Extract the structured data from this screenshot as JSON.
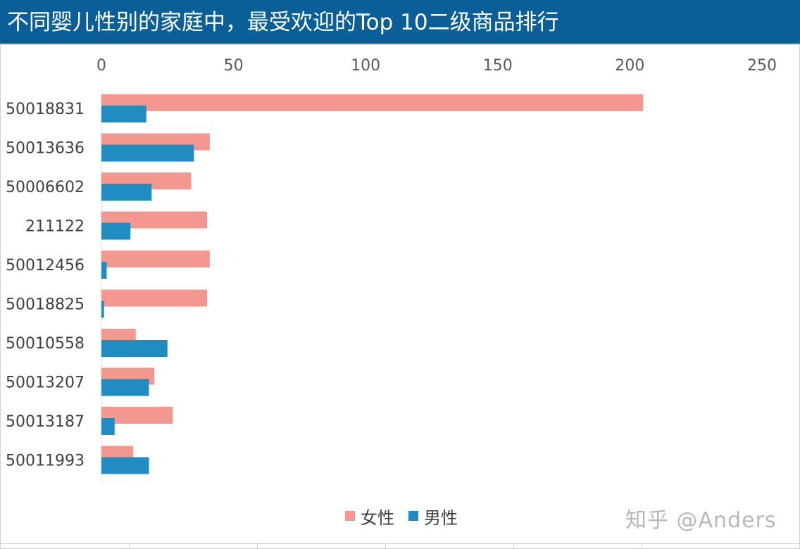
{
  "title": "不同婴儿性别的家庭中，最受欢迎的Top 10二级商品排行",
  "chart_data": {
    "type": "bar",
    "orientation": "horizontal",
    "categories": [
      "50018831",
      "50013636",
      "50006602",
      "211122",
      "50012456",
      "50018825",
      "50010558",
      "50013207",
      "50013187",
      "50011993"
    ],
    "series": [
      {
        "name": "女性",
        "color": "#f4978e",
        "values": [
          205,
          41,
          34,
          40,
          41,
          40,
          13,
          20,
          27,
          12
        ]
      },
      {
        "name": "男性",
        "color": "#1f8cc2",
        "values": [
          17,
          35,
          19,
          11,
          2,
          1,
          25,
          18,
          5,
          18
        ]
      }
    ],
    "x_ticks": [
      0,
      50,
      100,
      150,
      200,
      250
    ],
    "xlim": [
      0,
      250
    ],
    "axis_position": "top",
    "legend_position": "bottom",
    "grid": false
  },
  "legend": {
    "female_label": "女性",
    "male_label": "男性"
  },
  "watermark": "知乎 @Anders"
}
